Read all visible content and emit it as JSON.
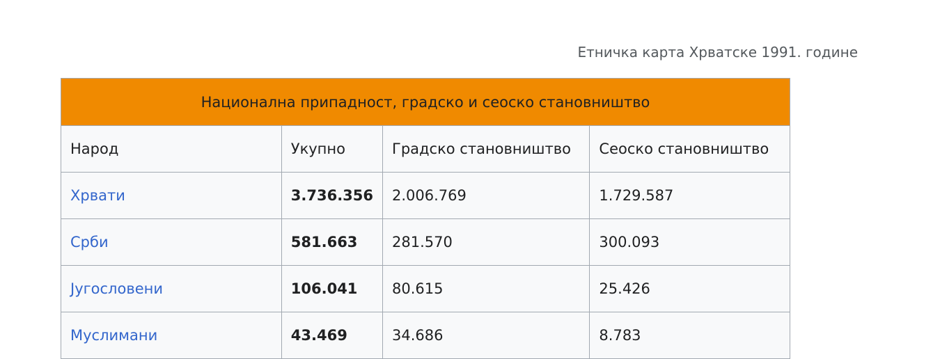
{
  "caption": "Етничка карта Хрватске 1991. године",
  "table": {
    "title": "Национална припадност, градско и сеоско становништво",
    "headers": [
      "Народ",
      "Укупно",
      "Градско становништво",
      "Сеоско становништво"
    ],
    "rows": [
      {
        "people": "Хрвати",
        "total": "3.736.356",
        "urban": "2.006.769",
        "rural": "1.729.587"
      },
      {
        "people": "Срби",
        "total": "581.663",
        "urban": "281.570",
        "rural": "300.093"
      },
      {
        "people": "Југословени",
        "total": "106.041",
        "urban": "80.615",
        "rural": "25.426"
      },
      {
        "people": "Муслимани",
        "total": "43.469",
        "urban": "34.686",
        "rural": "8.783"
      }
    ]
  },
  "colors": {
    "title_bg": "#f08a00",
    "link": "#3366cc"
  }
}
